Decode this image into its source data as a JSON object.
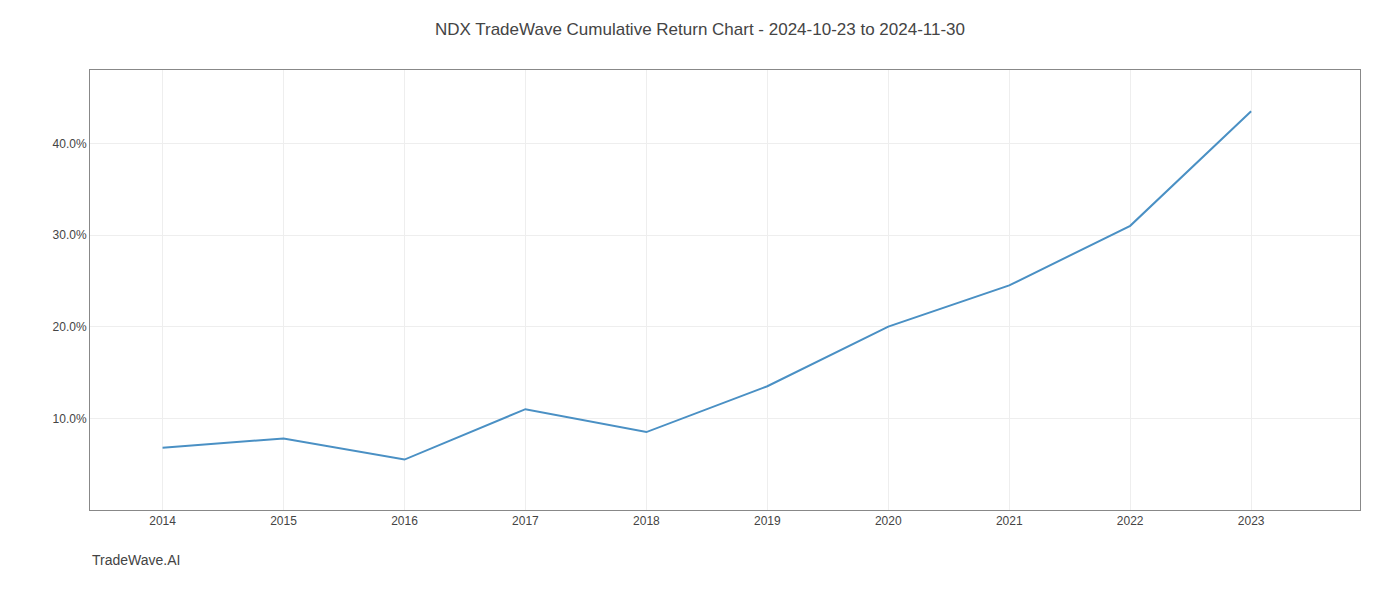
{
  "chart_data": {
    "type": "line",
    "title": "NDX TradeWave Cumulative Return Chart - 2024-10-23 to 2024-11-30",
    "annotations": [
      "TradeWave.AI"
    ],
    "x": [
      2014,
      2015,
      2016,
      2017,
      2018,
      2019,
      2020,
      2021,
      2022,
      2023
    ],
    "values": [
      6.8,
      7.8,
      5.5,
      11.0,
      8.5,
      13.5,
      20.0,
      24.5,
      31.0,
      43.5
    ],
    "color": "#4a90c4",
    "xlim": [
      2013.4,
      2023.9
    ],
    "xticks": [
      2014,
      2015,
      2016,
      2017,
      2018,
      2019,
      2020,
      2021,
      2022,
      2023
    ],
    "ylim": [
      0,
      48
    ],
    "yticks": [
      {
        "value": 10.0,
        "label": "10.0%"
      },
      {
        "value": 20.0,
        "label": "20.0%"
      },
      {
        "value": 30.0,
        "label": "30.0%"
      },
      {
        "value": 40.0,
        "label": "40.0%"
      }
    ],
    "grid": true
  }
}
